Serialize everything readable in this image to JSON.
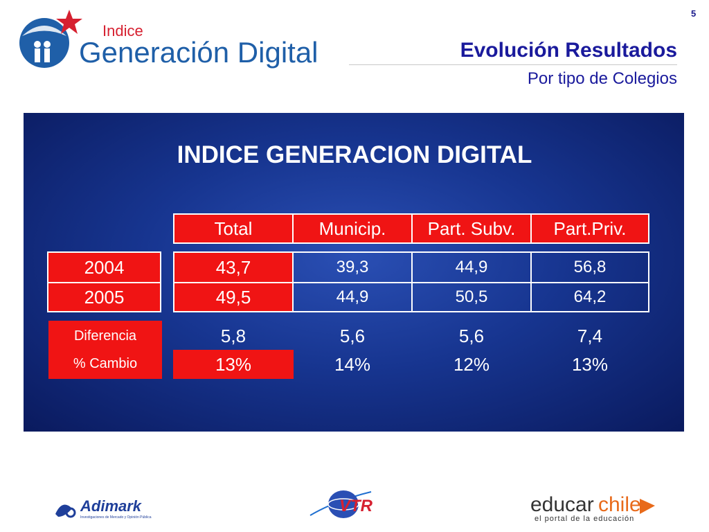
{
  "page_number": "5",
  "header": {
    "logo": {
      "small_text": "Indice",
      "big_text": "Generación Digital"
    },
    "title": "Evolución Resultados",
    "subtitle": "Por tipo de Colegios"
  },
  "panel": {
    "title": "INDICE GENERACION DIGITAL",
    "columns": [
      "Total",
      "Municip.",
      "Part. Subv.",
      "Part.Priv."
    ],
    "rows": [
      {
        "label": "2004",
        "values": [
          "43,7",
          "39,3",
          "44,9",
          "56,8"
        ]
      },
      {
        "label": "2005",
        "values": [
          "49,5",
          "44,9",
          "50,5",
          "64,2"
        ]
      }
    ],
    "diferencia": {
      "label": "Diferencia",
      "values": [
        "5,8",
        "5,6",
        "5,6",
        "7,4"
      ]
    },
    "cambio": {
      "label": "% Cambio",
      "values": [
        "13%",
        "14%",
        "12%",
        "13%"
      ]
    }
  },
  "footer": {
    "adimark": {
      "name": "Adimark",
      "tagline": "Investigaciones de Mercado y Opinión Pública"
    },
    "vtr": {
      "name": "VTR"
    },
    "educarchile": {
      "name_a": "educar",
      "name_b": "chile",
      "tagline": "el portal de la educación"
    }
  },
  "colors": {
    "red": "#f01414",
    "navy": "#1a1a9c",
    "panel_dark": "#0a1a5e",
    "panel_light": "#2a4fb4"
  }
}
